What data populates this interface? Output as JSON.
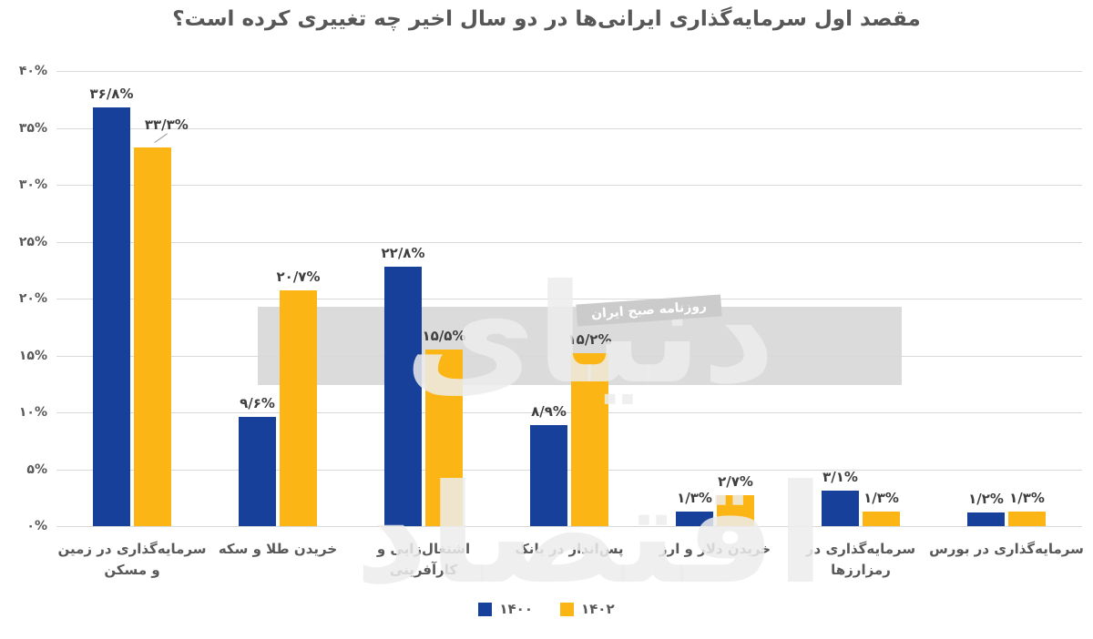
{
  "title": "مقصد اول سرمایه‌گذاری ایرانی‌ها در دو سال اخیر چه تغییری کرده است؟",
  "watermark": {
    "brand": "دنیای اقتصاد",
    "tagline": "روزنامه صبح ایران"
  },
  "colors": {
    "series_1400": "#16409A",
    "series_1402": "#FBB615",
    "gridline": "#D9D9D9",
    "axis_text": "#595959",
    "value_text": "#3F3F3F",
    "title_text": "#575757",
    "watermark_band": "#D8D8D8"
  },
  "chart_data": {
    "type": "bar",
    "title": "مقصد اول سرمایه‌گذاری ایرانی‌ها در دو سال اخیر چه تغییری کرده است؟",
    "xlabel": "",
    "ylabel": "",
    "ylim": [
      0,
      40
    ],
    "grid": true,
    "legend_position": "bottom-center",
    "categories": [
      "سرمایه‌گذاری در زمین\nو مسکن",
      "خریدن طلا و سکه",
      "اشتغال‌زایی و کارآفرینی",
      "پس‌انداز در بانک",
      "خریدن دلار و ارز",
      "سرمایه‌گذاری در\nرمزارزها",
      "سرمایه‌گذاری در بورس"
    ],
    "series": [
      {
        "name": "۱۴۰۰",
        "color": "#16409A",
        "values": [
          36.8,
          9.6,
          22.8,
          8.9,
          1.3,
          3.1,
          1.2
        ],
        "labels": [
          "۳۶/۸%",
          "۹/۶%",
          "۲۲/۸%",
          "۸/۹%",
          "۱/۳%",
          "۳/۱%",
          "۱/۲%"
        ]
      },
      {
        "name": "۱۴۰۲",
        "color": "#FBB615",
        "values": [
          33.3,
          20.7,
          15.5,
          15.2,
          2.7,
          1.3,
          1.3
        ],
        "labels": [
          "۳۳/۳%",
          "۲۰/۷%",
          "۱۵/۵%",
          "۱۵/۲%",
          "۲/۷%",
          "۱/۳%",
          "۱/۳%"
        ]
      }
    ],
    "yticks": {
      "values": [
        40,
        35,
        30,
        25,
        20,
        15,
        10,
        5,
        0
      ],
      "labels": [
        "۴۰%",
        "۳۵%",
        "۳۰%",
        "۲۵%",
        "۲۰%",
        "۱۵%",
        "۱۰%",
        "۵%",
        "۰%"
      ]
    },
    "callout": {
      "series": 1,
      "index": 0
    }
  }
}
